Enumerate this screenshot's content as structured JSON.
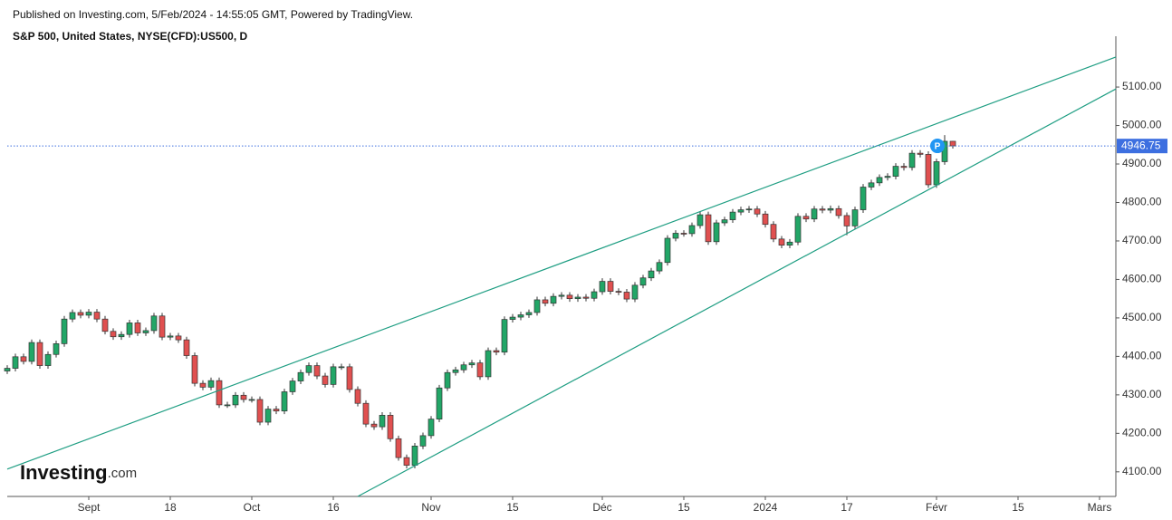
{
  "header": {
    "published": "Published on Investing.com, 5/Feb/2024 - 14:55:05 GMT, Powered by TradingView.",
    "instrument": "S&P 500, United States, NYSE(CFD):US500, D"
  },
  "logo": {
    "brand": "Investing",
    "suffix": ".com"
  },
  "chart_data": {
    "type": "candlestick",
    "ylim": [
      4036,
      5232
    ],
    "yticks": [
      {
        "value": 4100,
        "label": "4100.00"
      },
      {
        "value": 4200,
        "label": "4200.00"
      },
      {
        "value": 4300,
        "label": "4300.00"
      },
      {
        "value": 4400,
        "label": "4400.00"
      },
      {
        "value": 4500,
        "label": "4500.00"
      },
      {
        "value": 4600,
        "label": "4600.00"
      },
      {
        "value": 4700,
        "label": "4700.00"
      },
      {
        "value": 4800,
        "label": "4800.00"
      },
      {
        "value": 4900,
        "label": "4900.00"
      },
      {
        "value": 5000,
        "label": "5000.00"
      },
      {
        "value": 5100,
        "label": "5100.00"
      }
    ],
    "xticks": [
      {
        "value": 10,
        "label": "Sept"
      },
      {
        "value": 20,
        "label": "18"
      },
      {
        "value": 30,
        "label": "Oct"
      },
      {
        "value": 40,
        "label": "16"
      },
      {
        "value": 52,
        "label": "Nov"
      },
      {
        "value": 62,
        "label": "15"
      },
      {
        "value": 73,
        "label": "Déc"
      },
      {
        "value": 83,
        "label": "15"
      },
      {
        "value": 93,
        "label": "2024"
      },
      {
        "value": 103,
        "label": "17"
      },
      {
        "value": 114,
        "label": "Févr"
      },
      {
        "value": 124,
        "label": "15"
      },
      {
        "value": 134,
        "label": "Mars"
      }
    ],
    "up_color": "#22a667",
    "down_color": "#e05050",
    "open": [
      4362,
      4369,
      4399,
      4387,
      4436,
      4376,
      4405,
      4433,
      4497,
      4514,
      4507,
      4515,
      4497,
      4465,
      4451,
      4457,
      4487,
      4461,
      4467,
      4505,
      4450,
      4453,
      4443,
      4402,
      4330,
      4320,
      4337,
      4274,
      4274,
      4299,
      4288,
      4288,
      4229,
      4263,
      4258,
      4308,
      4336,
      4358,
      4376,
      4349,
      4327,
      4373,
      4373,
      4314,
      4278,
      4224,
      4217,
      4247,
      4186,
      4137,
      4117,
      4167,
      4194,
      4237,
      4318,
      4358,
      4365,
      4378,
      4383,
      4347,
      4415,
      4411,
      4496,
      4502,
      4508,
      4514,
      4547,
      4538,
      4556,
      4559,
      4550,
      4554,
      4551,
      4568,
      4595,
      4569,
      4567,
      4549,
      4585,
      4604,
      4622,
      4644,
      4707,
      4720,
      4719,
      4740,
      4768,
      4698,
      4747,
      4755,
      4775,
      4781,
      4783,
      4770,
      4743,
      4705,
      4689,
      4697,
      4764,
      4757,
      4783,
      4780,
      4784,
      4766,
      4739,
      4781,
      4840,
      4851,
      4865,
      4868,
      4894,
      4891,
      4928,
      4925,
      4846,
      4906,
      4959
    ],
    "high": [
      4377,
      4407,
      4407,
      4444,
      4444,
      4413,
      4441,
      4505,
      4522,
      4522,
      4523,
      4523,
      4505,
      4473,
      4465,
      4495,
      4495,
      4475,
      4513,
      4513,
      4461,
      4461,
      4451,
      4410,
      4338,
      4345,
      4345,
      4282,
      4307,
      4307,
      4296,
      4296,
      4271,
      4271,
      4316,
      4344,
      4366,
      4384,
      4384,
      4357,
      4381,
      4381,
      4381,
      4322,
      4286,
      4232,
      4255,
      4255,
      4194,
      4145,
      4175,
      4202,
      4245,
      4326,
      4366,
      4373,
      4386,
      4391,
      4391,
      4423,
      4423,
      4504,
      4510,
      4516,
      4522,
      4555,
      4555,
      4564,
      4567,
      4567,
      4562,
      4562,
      4576,
      4603,
      4603,
      4577,
      4575,
      4593,
      4612,
      4630,
      4652,
      4715,
      4728,
      4728,
      4748,
      4776,
      4776,
      4755,
      4763,
      4783,
      4789,
      4791,
      4791,
      4778,
      4751,
      4713,
      4705,
      4772,
      4772,
      4791,
      4791,
      4792,
      4792,
      4774,
      4789,
      4848,
      4859,
      4873,
      4876,
      4902,
      4902,
      4936,
      4936,
      4933,
      4914,
      4975,
      4960
    ],
    "low": [
      4354,
      4361,
      4379,
      4379,
      4368,
      4368,
      4397,
      4425,
      4489,
      4499,
      4499,
      4489,
      4457,
      4443,
      4443,
      4449,
      4453,
      4453,
      4459,
      4442,
      4442,
      4435,
      4394,
      4322,
      4312,
      4312,
      4266,
      4266,
      4266,
      4280,
      4280,
      4221,
      4221,
      4250,
      4250,
      4300,
      4328,
      4350,
      4341,
      4319,
      4319,
      4365,
      4306,
      4270,
      4216,
      4209,
      4209,
      4178,
      4129,
      4109,
      4109,
      4159,
      4186,
      4229,
      4310,
      4350,
      4357,
      4370,
      4339,
      4339,
      4403,
      4403,
      4488,
      4494,
      4500,
      4506,
      4530,
      4530,
      4548,
      4542,
      4542,
      4543,
      4543,
      4560,
      4561,
      4559,
      4541,
      4541,
      4577,
      4596,
      4614,
      4636,
      4699,
      4711,
      4711,
      4732,
      4690,
      4690,
      4739,
      4747,
      4767,
      4773,
      4762,
      4735,
      4697,
      4681,
      4681,
      4689,
      4749,
      4749,
      4772,
      4772,
      4758,
      4715,
      4731,
      4773,
      4832,
      4843,
      4857,
      4860,
      4883,
      4883,
      4917,
      4838,
      4838,
      4898,
      4940
    ],
    "close": [
      4369,
      4399,
      4387,
      4436,
      4376,
      4405,
      4433,
      4497,
      4514,
      4507,
      4515,
      4497,
      4465,
      4451,
      4457,
      4487,
      4461,
      4467,
      4505,
      4450,
      4453,
      4443,
      4402,
      4330,
      4320,
      4337,
      4274,
      4274,
      4299,
      4288,
      4288,
      4229,
      4263,
      4258,
      4308,
      4336,
      4358,
      4376,
      4349,
      4327,
      4373,
      4373,
      4314,
      4278,
      4224,
      4217,
      4247,
      4186,
      4137,
      4117,
      4167,
      4194,
      4237,
      4318,
      4358,
      4365,
      4378,
      4383,
      4347,
      4415,
      4411,
      4496,
      4502,
      4508,
      4514,
      4547,
      4538,
      4556,
      4559,
      4550,
      4554,
      4551,
      4568,
      4595,
      4569,
      4567,
      4549,
      4585,
      4604,
      4622,
      4644,
      4707,
      4720,
      4719,
      4740,
      4768,
      4698,
      4747,
      4755,
      4775,
      4781,
      4783,
      4770,
      4743,
      4705,
      4689,
      4697,
      4764,
      4757,
      4783,
      4780,
      4784,
      4766,
      4739,
      4781,
      4840,
      4851,
      4865,
      4868,
      4894,
      4891,
      4928,
      4925,
      4846,
      4906,
      4959,
      4947
    ],
    "trendlines": [
      {
        "x": [
          0,
          136
        ],
        "values": [
          4107,
          5178
        ],
        "color": "#1f9e83"
      },
      {
        "x": [
          43,
          136
        ],
        "values": [
          4036,
          5095
        ],
        "color": "#1f9e83"
      }
    ],
    "last_price": {
      "value": 4946.75,
      "label": "4946.75",
      "color": "#3d6fe0"
    },
    "marker": {
      "label": "P",
      "x": 113,
      "value": 4947,
      "color": "#2196f3"
    }
  }
}
